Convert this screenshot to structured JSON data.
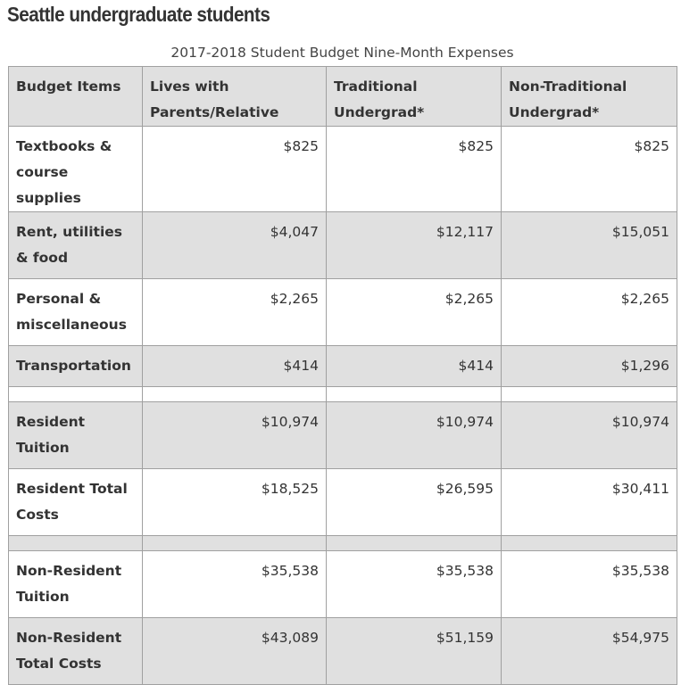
{
  "title": "Seattle undergraduate students",
  "caption": "2017-2018 Student Budget Nine-Month Expenses",
  "table": {
    "headers": [
      "Budget Items",
      "Lives with Parents/Relative",
      "Traditional Undergrad*",
      "Non-Traditional Undergrad*"
    ],
    "rows": [
      {
        "item": "Textbooks & course supplies",
        "values": [
          "$825",
          "$825",
          "$825"
        ]
      },
      {
        "item": "Rent, utilities & food",
        "values": [
          "$4,047",
          "$12,117",
          "$15,051"
        ]
      },
      {
        "item": "Personal & miscellaneous",
        "values": [
          "$2,265",
          "$2,265",
          "$2,265"
        ]
      },
      {
        "item": "Transportation",
        "values": [
          "$414",
          "$414",
          "$1,296"
        ]
      },
      {
        "item": "Resident Tuition",
        "values": [
          "$10,974",
          "$10,974",
          "$10,974"
        ]
      },
      {
        "item": "Resident Total Costs",
        "values": [
          "$18,525",
          "$26,595",
          "$30,411"
        ]
      },
      {
        "item": "Non-Resident Tuition",
        "values": [
          "$35,538",
          "$35,538",
          "$35,538"
        ]
      },
      {
        "item": "Non-Resident Total Costs",
        "values": [
          "$43,089",
          "$51,159",
          "$54,975"
        ]
      }
    ]
  },
  "colors": {
    "header_bg": "#e0e0e0",
    "shaded_row_bg": "#e0e0e0",
    "border": "#a0a0a0",
    "text": "#333333"
  }
}
